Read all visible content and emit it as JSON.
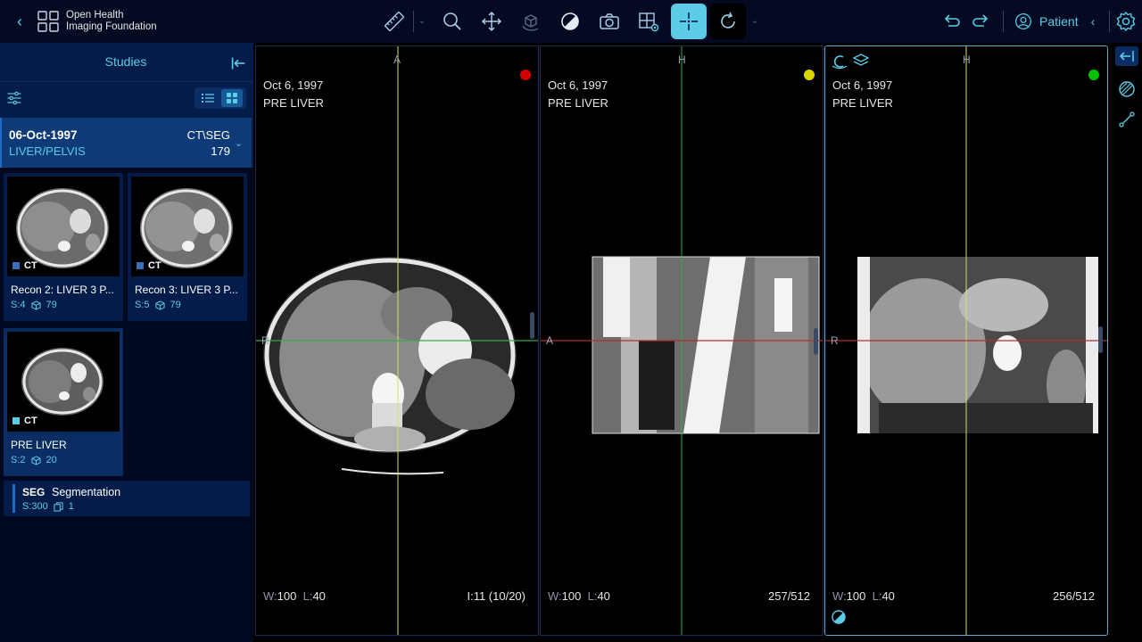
{
  "app": {
    "logo_line1": "Open Health",
    "logo_line2": "Imaging Foundation"
  },
  "toolbar": {
    "tools": [
      {
        "name": "measurement-ruler",
        "icon": "ruler-icon",
        "active": false
      },
      {
        "name": "zoom",
        "icon": "magnifier-icon",
        "active": false
      },
      {
        "name": "pan",
        "icon": "move-arrows-icon",
        "active": false
      },
      {
        "name": "3d-rotate",
        "icon": "cube-rotate-icon",
        "active": false
      },
      {
        "name": "window-level",
        "icon": "contrast-icon",
        "active": false
      },
      {
        "name": "capture",
        "icon": "camera-icon",
        "active": false
      },
      {
        "name": "layout",
        "icon": "layout-grid-icon",
        "active": false
      },
      {
        "name": "crosshairs",
        "icon": "crosshair-icon",
        "active": true
      },
      {
        "name": "rotate-reset",
        "icon": "rotate-icon",
        "active": false
      }
    ],
    "patient_label": "Patient",
    "colors": {
      "accent": "#5acce6",
      "bar_bg": "#050a23"
    }
  },
  "study_panel": {
    "title": "Studies",
    "study": {
      "date": "06-Oct-1997",
      "description": "LIVER/PELVIS",
      "modalities": "CT\\SEG",
      "instance_count": "179"
    },
    "series": [
      {
        "label": "Recon 2: LIVER 3 P...",
        "modality": "CT",
        "series_number": "S:4",
        "instances": "79",
        "active": false
      },
      {
        "label": "Recon 3: LIVER 3 P...",
        "modality": "CT",
        "series_number": "S:5",
        "instances": "79",
        "active": false
      },
      {
        "label": "PRE LIVER",
        "modality": "CT",
        "series_number": "S:2",
        "instances": "20",
        "active": true
      }
    ],
    "segmentation": {
      "modality": "SEG",
      "name": "Segmentation",
      "series_number": "S:300",
      "instances": "1"
    }
  },
  "viewports": [
    {
      "date": "Oct 6, 1997",
      "series": "PRE LIVER",
      "top_orientation": "A",
      "left_orientation": "R",
      "window_label": "W:",
      "window": "100",
      "level_label": "L:",
      "level": "40",
      "index": "I:11 (10/20)",
      "dot_color": "#d40000",
      "active": false
    },
    {
      "date": "Oct 6, 1997",
      "series": "PRE LIVER",
      "top_orientation": "H",
      "left_orientation": "A",
      "window_label": "W:",
      "window": "100",
      "level_label": "L:",
      "level": "40",
      "index": "257/512",
      "dot_color": "#d7d700",
      "active": false
    },
    {
      "date": "Oct 6, 1997",
      "series": "PRE LIVER",
      "top_orientation": "H",
      "left_orientation": "R",
      "window_label": "W:",
      "window": "100",
      "level_label": "L:",
      "level": "40",
      "index": "256/512",
      "dot_color": "#00c000",
      "active": true
    }
  ]
}
